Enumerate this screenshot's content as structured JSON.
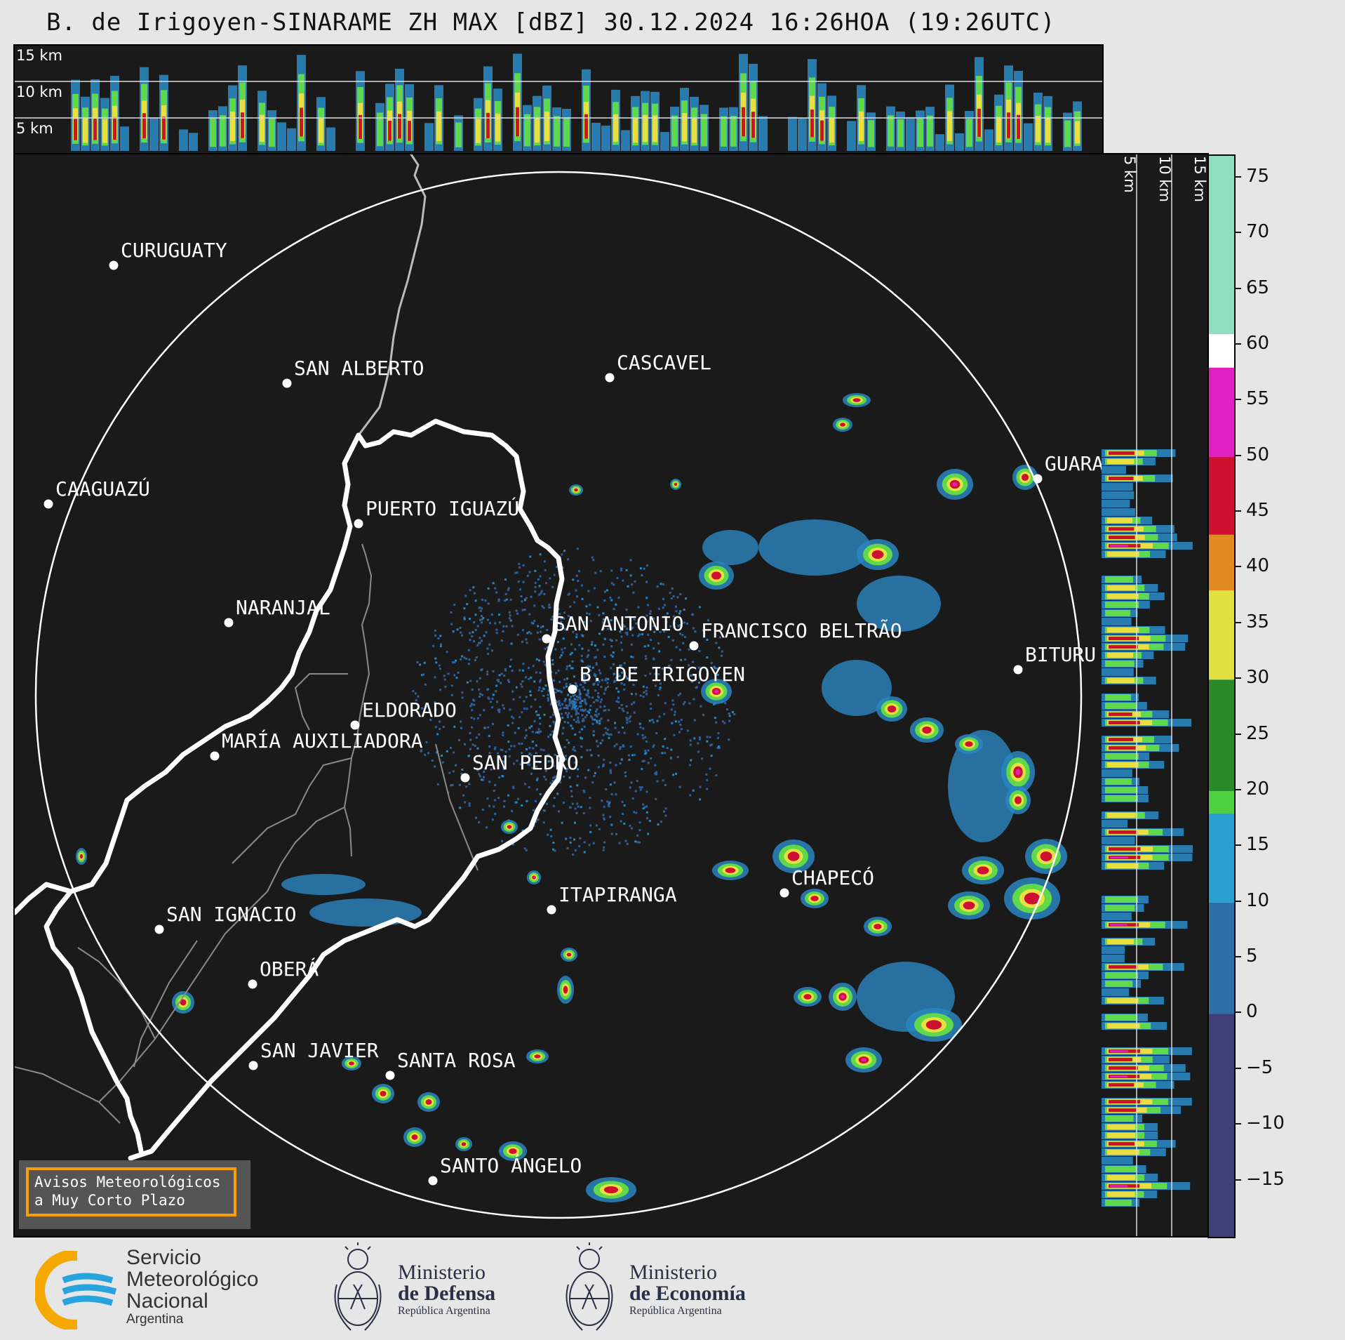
{
  "title": "B. de Irigoyen-SINARAME ZH MAX [dBZ] 30.12.2024 16:26HOA (19:26UTC)",
  "top_panel": {
    "height_labels": [
      "15 km",
      "10 km",
      "5 km"
    ]
  },
  "side_panel": {
    "height_labels": [
      "5 km",
      "10 km",
      "15 km"
    ]
  },
  "colorbar": {
    "unit": "dBZ",
    "range": [
      -20,
      77
    ],
    "ticks": [
      75,
      70,
      65,
      60,
      55,
      50,
      45,
      40,
      35,
      30,
      25,
      20,
      15,
      10,
      5,
      0,
      -5,
      -10,
      -15
    ],
    "tick_labels": [
      "75",
      "70",
      "65",
      "60",
      "55",
      "50",
      "45",
      "40",
      "35",
      "30",
      "25",
      "20",
      "15",
      "10",
      "5",
      "0",
      "−5",
      "−10",
      "−15"
    ],
    "bands": [
      {
        "from": -20,
        "to": 0,
        "color": "#3f3f78"
      },
      {
        "from": 0,
        "to": 10,
        "color": "#2f6fa8"
      },
      {
        "from": 10,
        "to": 18,
        "color": "#2aa0d0"
      },
      {
        "from": 18,
        "to": 20,
        "color": "#4fd040"
      },
      {
        "from": 20,
        "to": 30,
        "color": "#2a8a2a"
      },
      {
        "from": 30,
        "to": 38,
        "color": "#e0e040"
      },
      {
        "from": 38,
        "to": 43,
        "color": "#e08a20"
      },
      {
        "from": 43,
        "to": 50,
        "color": "#d01030"
      },
      {
        "from": 50,
        "to": 58,
        "color": "#e020c0"
      },
      {
        "from": 58,
        "to": 61,
        "color": "#ffffff"
      },
      {
        "from": 61,
        "to": 77,
        "color": "#90e0c0"
      }
    ]
  },
  "cities": [
    {
      "name": "CURUGUATY"
    },
    {
      "name": "SAN ALBERTO"
    },
    {
      "name": "CASCAVEL"
    },
    {
      "name": "CAAGUAZÚ"
    },
    {
      "name": "PUERTO IGUAZÚ"
    },
    {
      "name": "GUARA"
    },
    {
      "name": "NARANJAL"
    },
    {
      "name": "SAN ANTONIO"
    },
    {
      "name": "FRANCISCO BELTRÃO"
    },
    {
      "name": "BITURU"
    },
    {
      "name": "B. DE IRIGOYEN"
    },
    {
      "name": "ELDORADO"
    },
    {
      "name": "MARÍA AUXILIADORA"
    },
    {
      "name": "SAN PEDRO"
    },
    {
      "name": "CHAPECÓ"
    },
    {
      "name": "ITAPIRANGA"
    },
    {
      "name": "SAN IGNACIO"
    },
    {
      "name": "OBERÁ"
    },
    {
      "name": "SAN JAVIER"
    },
    {
      "name": "SANTA ROSA"
    },
    {
      "name": "SANTO ÁNGELO"
    }
  ],
  "notice": {
    "line1": "Avisos Meteorológicos",
    "line2": "a Muy Corto Plazo"
  },
  "footer": {
    "smn": {
      "line1": "Servicio",
      "line2": "Meteorológico",
      "line3": "Nacional",
      "line4": "Argentina"
    },
    "defensa": {
      "line1": "Ministerio",
      "line2": "de Defensa",
      "line3": "República Argentina"
    },
    "economia": {
      "line1": "Ministerio",
      "line2": "de Economía",
      "line3": "República Argentina"
    }
  }
}
